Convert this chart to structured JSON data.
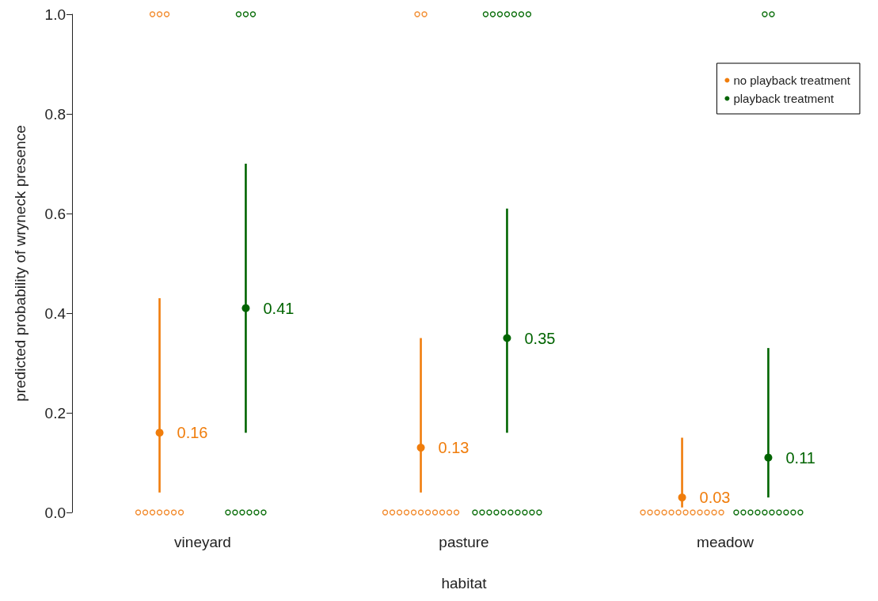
{
  "chart_data": {
    "type": "scatter",
    "xlabel": "habitat",
    "ylabel": "predicted probability of wryneck presence",
    "categories": [
      "vineyard",
      "pasture",
      "meadow"
    ],
    "ylim": [
      0,
      1
    ],
    "yticks": [
      {
        "value": 0,
        "label": "0.0"
      },
      0.2,
      0.4,
      0.6,
      0.8,
      {
        "value": 1,
        "label": "1.0"
      }
    ],
    "grid": false,
    "legend": "top right",
    "marker": "circle",
    "series": [
      {
        "name": "no playback treatment",
        "color": "#f07d0c",
        "values": [
          0.16,
          0.13,
          0.03
        ],
        "errors": [
          [
            0.04,
            0.43
          ],
          [
            0.04,
            0.35
          ],
          [
            0.01,
            0.15
          ]
        ],
        "value_labels": [
          "0.16",
          "0.13",
          "0.03"
        ]
      },
      {
        "name": "playback treatment",
        "color": "#006400",
        "values": [
          0.41,
          0.35,
          0.11
        ],
        "errors": [
          [
            0.16,
            0.7
          ],
          [
            0.16,
            0.61
          ],
          [
            0.03,
            0.33
          ]
        ],
        "value_labels": [
          "0.41",
          "0.35",
          "0.11"
        ]
      },
      {
        "color": "#f28c2f",
        "x": [
          "vineyard",
          "vineyard",
          "vineyard",
          "pasture",
          "pasture",
          "vineyard",
          "vineyard",
          "vineyard",
          "vineyard",
          "vineyard",
          "vineyard",
          "vineyard",
          "pasture",
          "pasture",
          "pasture",
          "pasture",
          "pasture",
          "pasture",
          "pasture",
          "pasture",
          "pasture",
          "pasture",
          "pasture",
          "meadow",
          "meadow",
          "meadow",
          "meadow",
          "meadow",
          "meadow",
          "meadow",
          "meadow",
          "meadow",
          "meadow",
          "meadow",
          "meadow"
        ],
        "values": [
          1,
          1,
          1,
          1,
          1,
          0,
          0,
          0,
          0,
          0,
          0,
          0,
          0,
          0,
          0,
          0,
          0,
          0,
          0,
          0,
          0,
          0,
          0,
          0,
          0,
          0,
          0,
          0,
          0,
          0,
          0,
          0,
          0,
          0,
          0
        ]
      },
      {
        "color": "#0a6e0a",
        "x": [
          "vineyard",
          "vineyard",
          "vineyard",
          "pasture",
          "pasture",
          "pasture",
          "pasture",
          "pasture",
          "pasture",
          "pasture",
          "meadow",
          "meadow",
          "vineyard",
          "vineyard",
          "vineyard",
          "vineyard",
          "vineyard",
          "vineyard",
          "pasture",
          "pasture",
          "pasture",
          "pasture",
          "pasture",
          "pasture",
          "pasture",
          "pasture",
          "pasture",
          "pasture",
          "meadow",
          "meadow",
          "meadow",
          "meadow",
          "meadow",
          "meadow",
          "meadow",
          "meadow",
          "meadow",
          "meadow"
        ],
        "values": [
          1,
          1,
          1,
          1,
          1,
          1,
          1,
          1,
          1,
          1,
          1,
          1,
          0,
          0,
          0,
          0,
          0,
          0,
          0,
          0,
          0,
          0,
          0,
          0,
          0,
          0,
          0,
          0,
          0,
          0,
          0,
          0,
          0,
          0,
          0,
          0,
          0,
          0
        ]
      }
    ]
  }
}
